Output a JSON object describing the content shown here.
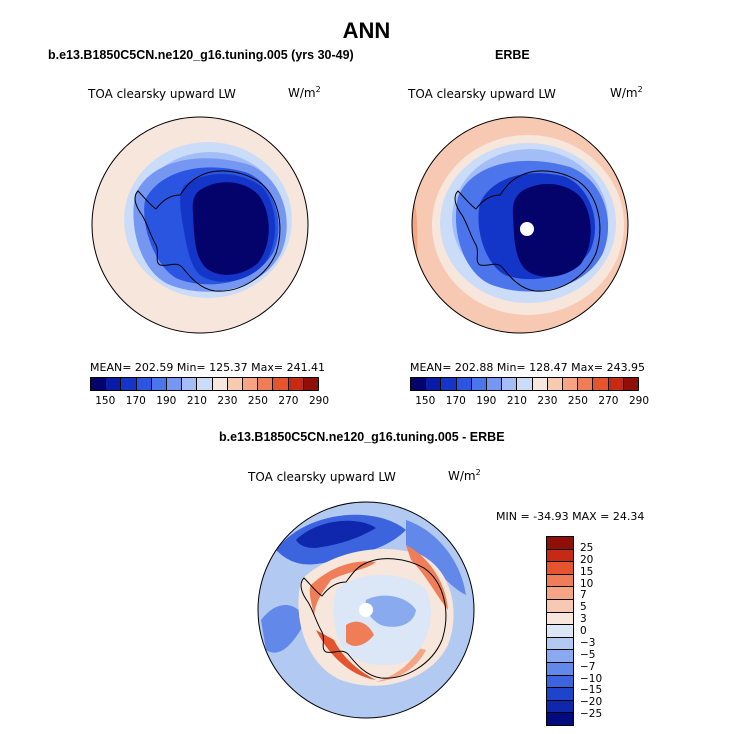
{
  "title": "ANN",
  "panels": [
    {
      "title": "b.e13.B1850C5CN.ne120_g16.tuning.005 (yrs 30-49)",
      "subtitle": "TOA clearsky upward LW",
      "units_base": "W/m",
      "units_exp": "2",
      "stats_text": "MEAN= 202.59   Min= 125.37   Max= 241.41",
      "mean": 202.59,
      "min": 125.37,
      "max": 241.41
    },
    {
      "title": "ERBE",
      "subtitle": "TOA clearsky upward LW",
      "units_base": "W/m",
      "units_exp": "2",
      "stats_text": "MEAN= 202.88   Min= 128.47   Max= 243.95",
      "mean": 202.88,
      "min": 128.47,
      "max": 243.95
    },
    {
      "title": "b.e13.B1850C5CN.ne120_g16.tuning.005 - ERBE",
      "subtitle": "TOA clearsky upward LW",
      "units_base": "W/m",
      "units_exp": "2",
      "stats_text": "MIN = -34.93 MAX =  24.34",
      "min": -34.93,
      "max": 24.34
    }
  ],
  "chart_data": [
    {
      "type": "heatmap",
      "projection": "south polar stereographic",
      "colorbar_orientation": "horizontal",
      "colorbar_labels": [
        "150",
        "170",
        "190",
        "210",
        "230",
        "250",
        "270",
        "290"
      ],
      "colorbar_colors": [
        "#03036b",
        "#0a1ca6",
        "#1436c8",
        "#2a55e0",
        "#4c75ec",
        "#7597f2",
        "#a3bdf6",
        "#cadcf8",
        "#f6e6dc",
        "#f8c9b2",
        "#f5a584",
        "#ef7e58",
        "#e4542f",
        "#c72a14",
        "#8d0f07"
      ]
    },
    {
      "type": "heatmap",
      "projection": "south polar stereographic",
      "colorbar_orientation": "horizontal",
      "colorbar_labels": [
        "150",
        "170",
        "190",
        "210",
        "230",
        "250",
        "270",
        "290"
      ],
      "colorbar_colors": [
        "#03036b",
        "#0a1ca6",
        "#1436c8",
        "#2a55e0",
        "#4c75ec",
        "#7597f2",
        "#a3bdf6",
        "#cadcf8",
        "#f6e6dc",
        "#f8c9b2",
        "#f5a584",
        "#ef7e58",
        "#e4542f",
        "#c72a14",
        "#8d0f07"
      ]
    },
    {
      "type": "heatmap",
      "projection": "south polar stereographic",
      "colorbar_orientation": "vertical",
      "colorbar_labels": [
        "25",
        "20",
        "15",
        "10",
        "7",
        "5",
        "3",
        "0",
        "−3",
        "−5",
        "−7",
        "−10",
        "−15",
        "−20",
        "−25"
      ],
      "colorbar_colors": [
        "#8d0f07",
        "#c72a14",
        "#e4542f",
        "#ef7e58",
        "#f5a584",
        "#f8c9b2",
        "#f6e6dc",
        "#dbe7f6",
        "#b2c9f2",
        "#8aaaf0",
        "#6288ea",
        "#3b64de",
        "#1f44cc",
        "#0e27ac",
        "#030c7e"
      ]
    }
  ]
}
